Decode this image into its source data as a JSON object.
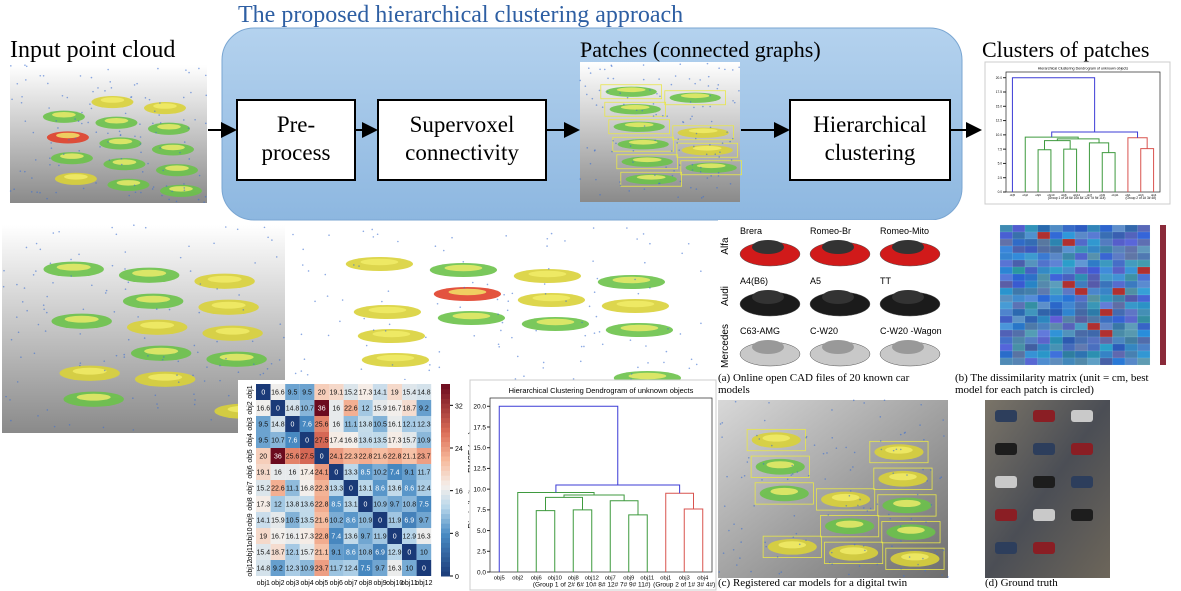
{
  "header": {
    "title": "The proposed hierarchical clustering approach"
  },
  "pipeline": {
    "input_label": "Input point cloud",
    "patches_label": "Patches (connected graphs)",
    "clusters_label": "Clusters of patches",
    "steps": [
      [
        "Pre-",
        "process"
      ],
      [
        "Supervoxel",
        "connectivity"
      ],
      [
        "Hierarchical",
        "clustering"
      ]
    ]
  },
  "heatmap": {
    "labels": [
      "obj1",
      "obj2",
      "obj3",
      "obj4",
      "obj5",
      "obj6",
      "obj7",
      "obj8",
      "obj9",
      "obj10",
      "obj11",
      "obj12"
    ],
    "matrix": [
      [
        0.0,
        16.6,
        9.5,
        9.5,
        20.0,
        19.1,
        15.2,
        17.3,
        14.1,
        19.0,
        15.4,
        14.8
      ],
      [
        16.6,
        0.0,
        14.8,
        10.7,
        36.0,
        16.0,
        22.6,
        12.0,
        15.9,
        16.7,
        18.7,
        9.2
      ],
      [
        9.5,
        14.8,
        0.0,
        7.6,
        25.6,
        16.0,
        11.1,
        13.8,
        10.5,
        16.1,
        12.1,
        12.3
      ],
      [
        9.5,
        10.7,
        7.6,
        0.0,
        27.5,
        17.4,
        16.8,
        13.6,
        13.5,
        17.3,
        15.7,
        10.9
      ],
      [
        20.0,
        36.0,
        25.6,
        27.5,
        0.0,
        24.1,
        22.3,
        22.8,
        21.6,
        22.8,
        21.1,
        23.7
      ],
      [
        19.1,
        16.0,
        16.0,
        17.4,
        24.1,
        0.0,
        13.3,
        8.5,
        10.2,
        7.4,
        9.1,
        11.7
      ],
      [
        15.2,
        22.6,
        11.1,
        16.8,
        22.3,
        13.3,
        0.0,
        13.1,
        8.6,
        13.6,
        8.6,
        12.4
      ],
      [
        17.3,
        12.0,
        13.8,
        13.6,
        22.8,
        8.5,
        13.1,
        0.0,
        10.9,
        9.7,
        10.8,
        7.5
      ],
      [
        14.1,
        15.9,
        10.5,
        13.5,
        21.6,
        10.2,
        8.6,
        10.9,
        0.0,
        11.9,
        6.9,
        9.7
      ],
      [
        19.0,
        16.7,
        16.1,
        17.3,
        22.8,
        7.4,
        13.6,
        9.7,
        11.9,
        0.0,
        12.9,
        16.3
      ],
      [
        15.4,
        18.7,
        12.1,
        15.7,
        21.1,
        9.1,
        8.6,
        10.8,
        6.9,
        12.9,
        0.0,
        10.0
      ],
      [
        14.8,
        9.2,
        12.3,
        10.9,
        23.7,
        11.7,
        12.4,
        7.5,
        9.7,
        16.3,
        10.0,
        0.0
      ]
    ],
    "colorbar": {
      "label": "Dissimilarity as RMSE (cm)",
      "lim": [
        0,
        36
      ],
      "ticks": [
        0,
        8,
        16,
        24,
        32
      ]
    }
  },
  "dendrogram": {
    "title": "Hierarchical Clustering Dendrogram of unknown objects",
    "leaves": [
      "obj5",
      "obj2",
      "obj6",
      "obj10",
      "obj8",
      "obj12",
      "obj7",
      "obj9",
      "obj11",
      "obj1",
      "obj3",
      "obj4"
    ],
    "ylim": [
      0,
      21
    ],
    "yticks": [
      {
        "value": 0,
        "label": "0.0"
      },
      {
        "value": 2.5,
        "label": "2.5"
      },
      {
        "value": 5,
        "label": "5.0"
      },
      {
        "value": 7.5,
        "label": "7.5"
      },
      {
        "value": 10,
        "label": "10.0"
      },
      {
        "value": 12.5,
        "label": "12.5"
      },
      {
        "value": 15,
        "label": "15.0"
      },
      {
        "value": 17.5,
        "label": "17.5"
      },
      {
        "value": 20,
        "label": "20.0"
      }
    ],
    "groups": [
      "(Group 1 of 2# 6# 10# 8# 12# 7# 9# 11#)",
      "(Group 2 of 1# 3# 4#)"
    ],
    "tree": {
      "height": 20.0,
      "color": "#3b3bd6",
      "children": [
        0,
        {
          "height": 10.5,
          "color": "#3b3bd6",
          "children": [
            {
              "height": 9.6,
              "color": "#3f9a3f",
              "children": [
                1,
                {
                  "height": 9.3,
                  "color": "#3f9a3f",
                  "children": [
                    {
                      "height": 9.0,
                      "color": "#3f9a3f",
                      "children": [
                        {
                          "height": 7.4,
                          "color": "#3f9a3f",
                          "children": [
                            2,
                            3
                          ]
                        },
                        {
                          "height": 7.5,
                          "color": "#3f9a3f",
                          "children": [
                            4,
                            5
                          ]
                        }
                      ]
                    },
                    {
                      "height": 8.6,
                      "color": "#3f9a3f",
                      "children": [
                        6,
                        {
                          "height": 6.9,
                          "color": "#3f9a3f",
                          "children": [
                            7,
                            8
                          ]
                        }
                      ]
                    }
                  ]
                }
              ]
            },
            {
              "height": 9.5,
              "color": "#d9534f",
              "children": [
                9,
                {
                  "height": 7.6,
                  "color": "#d9534f",
                  "children": [
                    10,
                    11
                  ]
                }
              ]
            }
          ]
        }
      ]
    }
  },
  "cad": {
    "brands": [
      "Alfa",
      "Audi",
      "Mercedes"
    ],
    "models": [
      [
        "Brera",
        "Romeo-Br",
        "Romeo-Mito"
      ],
      [
        "A4(B6)",
        "A5",
        "TT"
      ],
      [
        "C63-AMG",
        "C-W20",
        "C-W20 -Wagon"
      ]
    ]
  },
  "captions": [
    [
      "(a) Online open CAD files of 20 known car",
      "models"
    ],
    [
      "(b) The dissimilarity matrix (unit = cm, best",
      "model for each patch is circled)"
    ],
    [
      "(c) Registered car models for a digital twin"
    ],
    [
      "(d) Ground truth"
    ]
  ]
}
